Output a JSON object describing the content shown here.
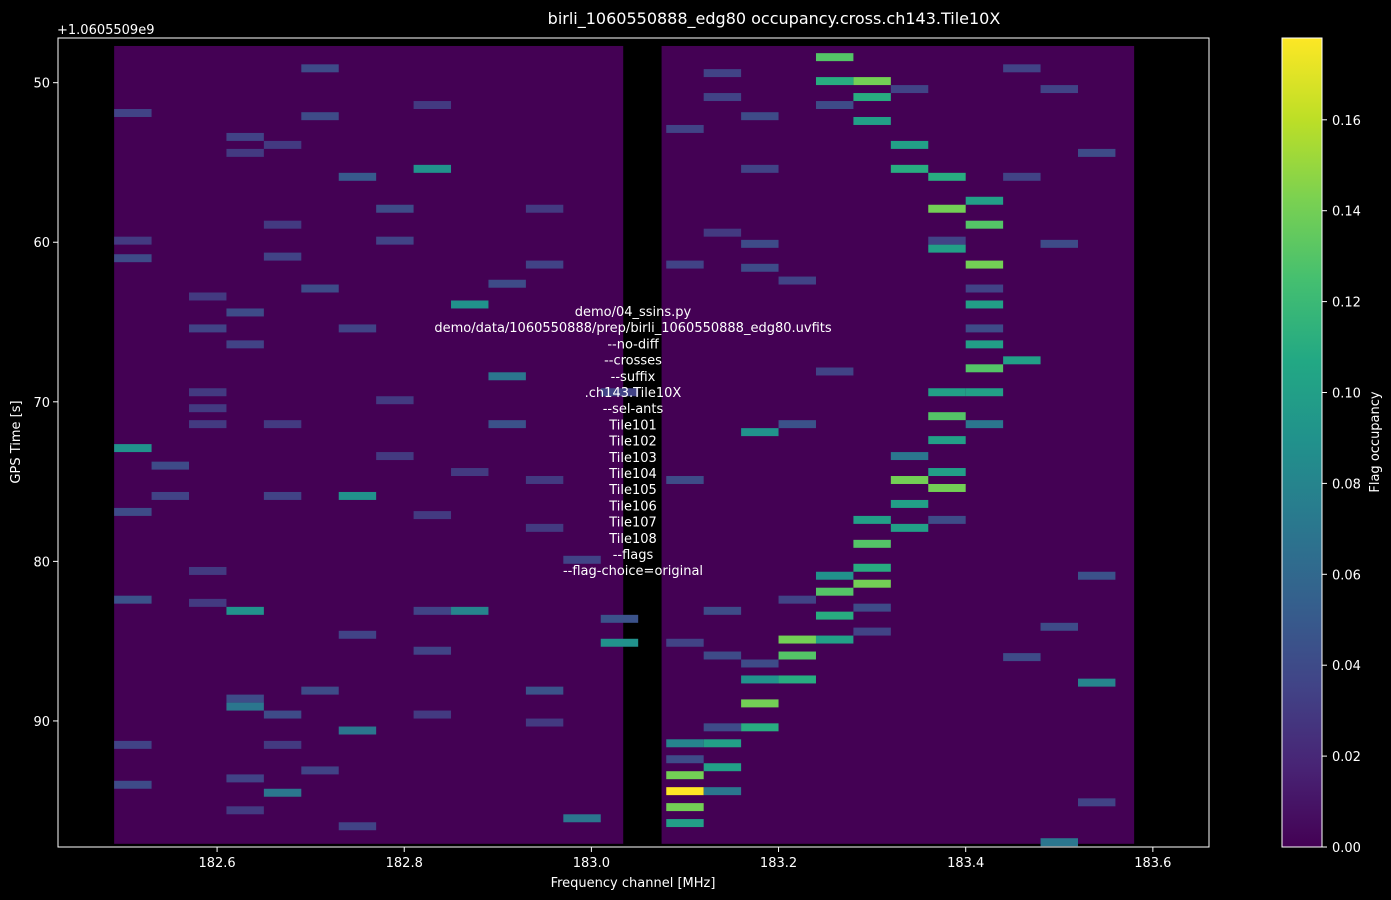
{
  "chart_data": {
    "type": "heatmap",
    "title": "birli_1060550888_edg80 occupancy.cross.ch143.Tile10X",
    "xlabel": "Frequency channel [MHz]",
    "ylabel": "GPS Time [s]",
    "y_offset_label": "+1.0605509e9",
    "xlim": [
      182.43,
      183.66
    ],
    "ylim": [
      97.9,
      47.2
    ],
    "x_ticks": [
      182.6,
      182.8,
      183.0,
      183.2,
      183.4,
      183.6
    ],
    "x_tick_labels": [
      "182.6",
      "182.8",
      "183.0",
      "183.2",
      "183.4",
      "183.6"
    ],
    "y_ticks": [
      50,
      60,
      70,
      80,
      90
    ],
    "y_tick_labels": [
      "50",
      "60",
      "70",
      "80",
      "90"
    ],
    "colorbar": {
      "label": "Flag occupancy",
      "range": [
        0,
        0.178
      ],
      "ticks": [
        0,
        0.02,
        0.04,
        0.06,
        0.08,
        0.1,
        0.12,
        0.14,
        0.16
      ],
      "tick_labels": [
        "0.00",
        "0.02",
        "0.04",
        "0.06",
        "0.08",
        "0.10",
        "0.12",
        "0.14",
        "0.16"
      ],
      "colormap": "viridis"
    },
    "channel_width_mhz": 0.04,
    "time_step_s": 0.5,
    "time_start_s": 47.7,
    "data_extent": {
      "x": [
        182.49,
        183.58
      ],
      "y": [
        47.7,
        97.7
      ]
    },
    "missing_channel_range_mhz": [
      183.034,
      183.075
    ],
    "background_value": 0.0,
    "sparse_cells": [
      {
        "f": 182.51,
        "t": 51.9,
        "v": 0.035
      },
      {
        "f": 182.51,
        "t": 59.9,
        "v": 0.03
      },
      {
        "f": 182.51,
        "t": 61.0,
        "v": 0.04
      },
      {
        "f": 182.51,
        "t": 72.9,
        "v": 0.09
      },
      {
        "f": 182.51,
        "t": 76.9,
        "v": 0.04
      },
      {
        "f": 182.51,
        "t": 82.4,
        "v": 0.045
      },
      {
        "f": 182.51,
        "t": 91.5,
        "v": 0.035
      },
      {
        "f": 182.51,
        "t": 94.0,
        "v": 0.04
      },
      {
        "f": 182.55,
        "t": 74.0,
        "v": 0.04
      },
      {
        "f": 182.55,
        "t": 75.9,
        "v": 0.035
      },
      {
        "f": 182.59,
        "t": 63.4,
        "v": 0.03
      },
      {
        "f": 182.59,
        "t": 65.4,
        "v": 0.035
      },
      {
        "f": 182.59,
        "t": 69.4,
        "v": 0.03
      },
      {
        "f": 182.59,
        "t": 70.4,
        "v": 0.03
      },
      {
        "f": 182.59,
        "t": 71.4,
        "v": 0.03
      },
      {
        "f": 182.59,
        "t": 80.6,
        "v": 0.03
      },
      {
        "f": 182.59,
        "t": 82.6,
        "v": 0.03
      },
      {
        "f": 182.63,
        "t": 53.4,
        "v": 0.035
      },
      {
        "f": 182.63,
        "t": 54.4,
        "v": 0.03
      },
      {
        "f": 182.63,
        "t": 64.4,
        "v": 0.04
      },
      {
        "f": 182.63,
        "t": 66.4,
        "v": 0.035
      },
      {
        "f": 182.63,
        "t": 83.1,
        "v": 0.09
      },
      {
        "f": 182.63,
        "t": 88.6,
        "v": 0.04
      },
      {
        "f": 182.63,
        "t": 89.1,
        "v": 0.07
      },
      {
        "f": 182.63,
        "t": 93.6,
        "v": 0.035
      },
      {
        "f": 182.63,
        "t": 95.6,
        "v": 0.03
      },
      {
        "f": 182.67,
        "t": 53.9,
        "v": 0.03
      },
      {
        "f": 182.67,
        "t": 58.9,
        "v": 0.03
      },
      {
        "f": 182.67,
        "t": 60.9,
        "v": 0.035
      },
      {
        "f": 182.67,
        "t": 71.4,
        "v": 0.03
      },
      {
        "f": 182.67,
        "t": 75.9,
        "v": 0.035
      },
      {
        "f": 182.67,
        "t": 89.6,
        "v": 0.04
      },
      {
        "f": 182.67,
        "t": 91.5,
        "v": 0.03
      },
      {
        "f": 182.67,
        "t": 94.5,
        "v": 0.07
      },
      {
        "f": 182.71,
        "t": 49.1,
        "v": 0.04
      },
      {
        "f": 182.71,
        "t": 52.1,
        "v": 0.04
      },
      {
        "f": 182.71,
        "t": 62.9,
        "v": 0.04
      },
      {
        "f": 182.71,
        "t": 88.1,
        "v": 0.04
      },
      {
        "f": 182.71,
        "t": 93.1,
        "v": 0.035
      },
      {
        "f": 182.75,
        "t": 55.9,
        "v": 0.05
      },
      {
        "f": 182.75,
        "t": 65.4,
        "v": 0.035
      },
      {
        "f": 182.75,
        "t": 75.9,
        "v": 0.09
      },
      {
        "f": 182.75,
        "t": 84.6,
        "v": 0.035
      },
      {
        "f": 182.75,
        "t": 90.6,
        "v": 0.07
      },
      {
        "f": 182.75,
        "t": 96.6,
        "v": 0.035
      },
      {
        "f": 182.79,
        "t": 57.9,
        "v": 0.04
      },
      {
        "f": 182.79,
        "t": 59.9,
        "v": 0.035
      },
      {
        "f": 182.79,
        "t": 69.9,
        "v": 0.03
      },
      {
        "f": 182.79,
        "t": 73.4,
        "v": 0.03
      },
      {
        "f": 182.83,
        "t": 51.4,
        "v": 0.03
      },
      {
        "f": 182.83,
        "t": 55.4,
        "v": 0.09
      },
      {
        "f": 182.83,
        "t": 77.1,
        "v": 0.03
      },
      {
        "f": 182.83,
        "t": 83.1,
        "v": 0.035
      },
      {
        "f": 182.83,
        "t": 85.6,
        "v": 0.035
      },
      {
        "f": 182.83,
        "t": 89.6,
        "v": 0.03
      },
      {
        "f": 182.87,
        "t": 63.9,
        "v": 0.09
      },
      {
        "f": 182.87,
        "t": 74.4,
        "v": 0.03
      },
      {
        "f": 182.87,
        "t": 83.1,
        "v": 0.08
      },
      {
        "f": 182.91,
        "t": 62.6,
        "v": 0.04
      },
      {
        "f": 182.91,
        "t": 68.4,
        "v": 0.07
      },
      {
        "f": 182.91,
        "t": 71.4,
        "v": 0.045
      },
      {
        "f": 182.95,
        "t": 57.9,
        "v": 0.03
      },
      {
        "f": 182.95,
        "t": 61.4,
        "v": 0.035
      },
      {
        "f": 182.95,
        "t": 74.9,
        "v": 0.03
      },
      {
        "f": 182.95,
        "t": 77.9,
        "v": 0.03
      },
      {
        "f": 182.95,
        "t": 90.1,
        "v": 0.03
      },
      {
        "f": 182.95,
        "t": 88.1,
        "v": 0.045
      },
      {
        "f": 182.99,
        "t": 79.9,
        "v": 0.035
      },
      {
        "f": 182.99,
        "t": 96.1,
        "v": 0.07
      },
      {
        "f": 183.03,
        "t": 85.1,
        "v": 0.09
      },
      {
        "f": 183.03,
        "t": 83.6,
        "v": 0.045
      },
      {
        "f": 183.03,
        "t": 69.4,
        "v": 0.035
      },
      {
        "f": 183.1,
        "t": 52.9,
        "v": 0.035
      },
      {
        "f": 183.1,
        "t": 61.4,
        "v": 0.035
      },
      {
        "f": 183.1,
        "t": 74.9,
        "v": 0.04
      },
      {
        "f": 183.1,
        "t": 85.1,
        "v": 0.035
      },
      {
        "f": 183.14,
        "t": 49.4,
        "v": 0.035
      },
      {
        "f": 183.14,
        "t": 50.9,
        "v": 0.035
      },
      {
        "f": 183.14,
        "t": 59.4,
        "v": 0.03
      },
      {
        "f": 183.14,
        "t": 83.1,
        "v": 0.04
      },
      {
        "f": 183.14,
        "t": 85.9,
        "v": 0.04
      },
      {
        "f": 183.18,
        "t": 52.1,
        "v": 0.04
      },
      {
        "f": 183.18,
        "t": 55.4,
        "v": 0.035
      },
      {
        "f": 183.18,
        "t": 60.1,
        "v": 0.04
      },
      {
        "f": 183.18,
        "t": 61.6,
        "v": 0.04
      },
      {
        "f": 183.18,
        "t": 71.9,
        "v": 0.09
      },
      {
        "f": 183.22,
        "t": 71.4,
        "v": 0.045
      },
      {
        "f": 183.22,
        "t": 62.4,
        "v": 0.035
      },
      {
        "f": 183.26,
        "t": 51.4,
        "v": 0.04
      },
      {
        "f": 183.26,
        "t": 68.1,
        "v": 0.035
      },
      {
        "f": 183.3,
        "t": 84.4,
        "v": 0.035
      },
      {
        "f": 183.34,
        "t": 50.4,
        "v": 0.035
      },
      {
        "f": 183.38,
        "t": 59.9,
        "v": 0.035
      },
      {
        "f": 183.42,
        "t": 62.9,
        "v": 0.035
      },
      {
        "f": 183.42,
        "t": 65.4,
        "v": 0.04
      },
      {
        "f": 183.46,
        "t": 49.1,
        "v": 0.035
      },
      {
        "f": 183.46,
        "t": 55.9,
        "v": 0.035
      },
      {
        "f": 183.46,
        "t": 86.0,
        "v": 0.04
      },
      {
        "f": 183.5,
        "t": 50.4,
        "v": 0.035
      },
      {
        "f": 183.5,
        "t": 60.1,
        "v": 0.04
      },
      {
        "f": 183.5,
        "t": 84.1,
        "v": 0.04
      },
      {
        "f": 183.54,
        "t": 54.4,
        "v": 0.04
      },
      {
        "f": 183.54,
        "t": 80.9,
        "v": 0.045
      },
      {
        "f": 183.54,
        "t": 87.6,
        "v": 0.08
      },
      {
        "f": 183.54,
        "t": 95.1,
        "v": 0.035
      },
      {
        "f": 183.5,
        "t": 97.6,
        "v": 0.07
      }
    ],
    "rfi_track": [
      {
        "f": 183.1,
        "t": 91.4,
        "v": 0.08
      },
      {
        "f": 183.1,
        "t": 92.4,
        "v": 0.04
      },
      {
        "f": 183.1,
        "t": 93.4,
        "v": 0.14
      },
      {
        "f": 183.1,
        "t": 94.4,
        "v": 0.178
      },
      {
        "f": 183.1,
        "t": 95.4,
        "v": 0.14
      },
      {
        "f": 183.1,
        "t": 96.4,
        "v": 0.1
      },
      {
        "f": 183.14,
        "t": 90.4,
        "v": 0.04
      },
      {
        "f": 183.14,
        "t": 91.4,
        "v": 0.1
      },
      {
        "f": 183.14,
        "t": 92.9,
        "v": 0.1
      },
      {
        "f": 183.14,
        "t": 94.4,
        "v": 0.07
      },
      {
        "f": 183.18,
        "t": 87.4,
        "v": 0.09
      },
      {
        "f": 183.18,
        "t": 88.9,
        "v": 0.14
      },
      {
        "f": 183.18,
        "t": 90.4,
        "v": 0.11
      },
      {
        "f": 183.18,
        "t": 86.4,
        "v": 0.04
      },
      {
        "f": 183.22,
        "t": 84.9,
        "v": 0.14
      },
      {
        "f": 183.22,
        "t": 85.9,
        "v": 0.13
      },
      {
        "f": 183.22,
        "t": 87.4,
        "v": 0.11
      },
      {
        "f": 183.22,
        "t": 82.4,
        "v": 0.035
      },
      {
        "f": 183.26,
        "t": 81.9,
        "v": 0.13
      },
      {
        "f": 183.26,
        "t": 83.4,
        "v": 0.11
      },
      {
        "f": 183.26,
        "t": 84.9,
        "v": 0.1
      },
      {
        "f": 183.26,
        "t": 80.9,
        "v": 0.09
      },
      {
        "f": 183.3,
        "t": 77.4,
        "v": 0.1
      },
      {
        "f": 183.3,
        "t": 78.9,
        "v": 0.13
      },
      {
        "f": 183.3,
        "t": 80.4,
        "v": 0.11
      },
      {
        "f": 183.3,
        "t": 81.4,
        "v": 0.14
      },
      {
        "f": 183.3,
        "t": 82.9,
        "v": 0.04
      },
      {
        "f": 183.34,
        "t": 73.4,
        "v": 0.07
      },
      {
        "f": 183.34,
        "t": 74.9,
        "v": 0.14
      },
      {
        "f": 183.34,
        "t": 76.4,
        "v": 0.1
      },
      {
        "f": 183.34,
        "t": 77.9,
        "v": 0.1
      },
      {
        "f": 183.38,
        "t": 69.4,
        "v": 0.1
      },
      {
        "f": 183.38,
        "t": 70.9,
        "v": 0.13
      },
      {
        "f": 183.38,
        "t": 72.4,
        "v": 0.1
      },
      {
        "f": 183.38,
        "t": 74.4,
        "v": 0.1
      },
      {
        "f": 183.38,
        "t": 75.4,
        "v": 0.14
      },
      {
        "f": 183.38,
        "t": 77.4,
        "v": 0.04
      },
      {
        "f": 183.42,
        "t": 63.9,
        "v": 0.1
      },
      {
        "f": 183.42,
        "t": 66.4,
        "v": 0.1
      },
      {
        "f": 183.42,
        "t": 67.9,
        "v": 0.13
      },
      {
        "f": 183.42,
        "t": 69.4,
        "v": 0.1
      },
      {
        "f": 183.42,
        "t": 71.4,
        "v": 0.07
      },
      {
        "f": 183.42,
        "t": 61.4,
        "v": 0.14
      },
      {
        "f": 183.38,
        "t": 57.9,
        "v": 0.14
      },
      {
        "f": 183.38,
        "t": 60.4,
        "v": 0.1
      },
      {
        "f": 183.38,
        "t": 55.9,
        "v": 0.11
      },
      {
        "f": 183.34,
        "t": 53.9,
        "v": 0.1
      },
      {
        "f": 183.34,
        "t": 55.4,
        "v": 0.11
      },
      {
        "f": 183.3,
        "t": 50.9,
        "v": 0.11
      },
      {
        "f": 183.3,
        "t": 52.4,
        "v": 0.1
      },
      {
        "f": 183.3,
        "t": 49.9,
        "v": 0.14
      },
      {
        "f": 183.26,
        "t": 48.4,
        "v": 0.13
      },
      {
        "f": 183.26,
        "t": 49.9,
        "v": 0.11
      },
      {
        "f": 183.42,
        "t": 57.4,
        "v": 0.1
      },
      {
        "f": 183.42,
        "t": 58.9,
        "v": 0.13
      },
      {
        "f": 183.46,
        "t": 67.4,
        "v": 0.1
      }
    ],
    "annotation_lines": [
      "demo/04_ssins.py",
      "demo/data/1060550888/prep/birli_1060550888_edg80.uvfits",
      "--no-diff",
      "--crosses",
      "--suffix",
      ".ch143.Tile10X",
      "--sel-ants",
      "Tile101",
      "Tile102",
      "Tile103",
      "Tile104",
      "Tile105",
      "Tile106",
      "Tile107",
      "Tile108",
      "--flags",
      "--flag-choice=original"
    ]
  }
}
